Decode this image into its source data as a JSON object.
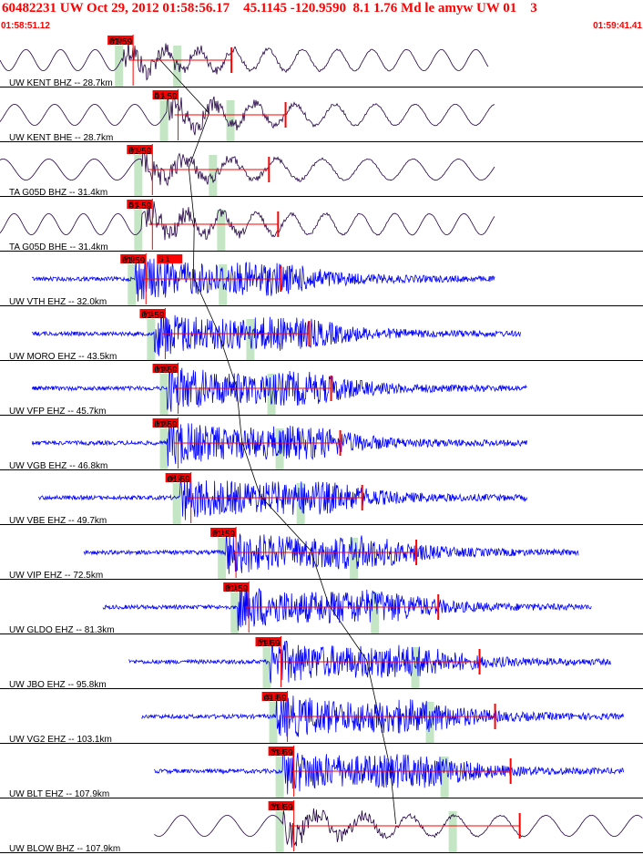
{
  "header": {
    "title": "60482231 UW Oct 29, 2012 01:58:56.17    45.1145 -120.9590  8.1 1.76 Md le amyw UW 01    3",
    "start_time": "01:58:51.12",
    "end_time": "01:59:41.41"
  },
  "colors": {
    "header_text": "#ff0000",
    "trace_dark": "#220044",
    "trace_blue": "#0000ff",
    "pick_box": "#ff0000",
    "pick_window": "#c5e6c5",
    "separator": "#000000"
  },
  "chart_data": {
    "type": "seismogram-record-section",
    "time_range": [
      "01:58:51.12",
      "01:59:41.41"
    ],
    "traces": [
      {
        "label": "UW KENT BHZ -- 28.7km",
        "distance_km": 28.7,
        "time_label": "01:59",
        "pick_label": "iP 0",
        "style": "dark",
        "start_frac": 0.0,
        "end_frac": 0.76,
        "onset_frac": 0.19,
        "amp": 0.35,
        "env": "bb"
      },
      {
        "label": "UW KENT BHE -- 28.7km",
        "distance_km": 28.7,
        "time_label": "01:59",
        "pick_label": "S 1",
        "style": "dark",
        "start_frac": 0.0,
        "end_frac": 0.77,
        "onset_frac": 0.26,
        "amp": 0.35,
        "env": "bb"
      },
      {
        "label": "TA G05D BHZ -- 31.4km",
        "distance_km": 31.4,
        "time_label": "01:59",
        "pick_label": "iP 0",
        "style": "dark",
        "start_frac": 0.0,
        "end_frac": 0.77,
        "onset_frac": 0.22,
        "amp": 0.35,
        "env": "bb"
      },
      {
        "label": "TA G05D BHE -- 31.4km",
        "distance_km": 31.4,
        "time_label": "01:59",
        "pick_label": "S 1",
        "style": "dark",
        "start_frac": 0.0,
        "end_frac": 0.77,
        "onset_frac": 0.22,
        "amp": 0.35,
        "env": "bb"
      },
      {
        "label": "UW VTH EHZ -- 32.0km",
        "distance_km": 32.0,
        "time_label": "01:59",
        "pick_label": "iP 0",
        "pick2_label": "S 1",
        "style": "blue",
        "start_frac": 0.05,
        "end_frac": 0.77,
        "onset_frac": 0.21,
        "amp": 0.45,
        "env": "hf"
      },
      {
        "label": "UW MORO EHZ -- 43.5km",
        "distance_km": 43.5,
        "time_label": "01:59",
        "pick_label": "iP 1",
        "style": "blue",
        "start_frac": 0.05,
        "end_frac": 0.81,
        "onset_frac": 0.24,
        "amp": 0.45,
        "env": "hf"
      },
      {
        "label": "UW VFP EHZ -- 45.7km",
        "distance_km": 45.7,
        "time_label": "01:59",
        "pick_label": "iPd0",
        "style": "blue",
        "start_frac": 0.05,
        "end_frac": 0.82,
        "onset_frac": 0.26,
        "amp": 0.45,
        "env": "hf"
      },
      {
        "label": "UW VGB EHZ -- 46.8km",
        "distance_km": 46.8,
        "time_label": "01:59",
        "pick_label": "iPd0",
        "style": "blue",
        "start_frac": 0.05,
        "end_frac": 0.82,
        "onset_frac": 0.26,
        "amp": 0.45,
        "env": "hf"
      },
      {
        "label": "UW VBE EHZ -- 49.7km",
        "distance_km": 49.7,
        "time_label": "01:59",
        "pick_label": "eP 2",
        "style": "blue",
        "start_frac": 0.06,
        "end_frac": 0.82,
        "onset_frac": 0.28,
        "amp": 0.45,
        "env": "hf"
      },
      {
        "label": "UW VIP EHZ -- 72.5km",
        "distance_km": 72.5,
        "time_label": "01:59",
        "pick_label": "iP 1",
        "style": "blue",
        "start_frac": 0.13,
        "end_frac": 0.9,
        "onset_frac": 0.35,
        "amp": 0.45,
        "env": "hf"
      },
      {
        "label": "UW GLDO EHZ -- 81.3km",
        "distance_km": 81.3,
        "time_label": "01:59",
        "pick_label": "iP 1",
        "style": "blue",
        "start_frac": 0.16,
        "end_frac": 0.92,
        "onset_frac": 0.37,
        "amp": 0.45,
        "env": "hf"
      },
      {
        "label": "UW JBO EHZ -- 95.8km",
        "distance_km": 95.8,
        "time_label": "01:59",
        "pick_label": "iPd1",
        "style": "blue",
        "start_frac": 0.2,
        "end_frac": 0.95,
        "onset_frac": 0.42,
        "amp": 0.45,
        "env": "hf"
      },
      {
        "label": "UW VG2 EHZ -- 103.1km",
        "distance_km": 103.1,
        "time_label": "01:59",
        "pick_label": "eS 1",
        "style": "blue",
        "start_frac": 0.22,
        "end_frac": 0.97,
        "onset_frac": 0.43,
        "amp": 0.45,
        "env": "hf"
      },
      {
        "label": "UW BLT EHZ -- 107.9km",
        "distance_km": 107.9,
        "time_label": "01:59",
        "pick_label": "iPd1",
        "style": "blue",
        "start_frac": 0.24,
        "end_frac": 0.97,
        "onset_frac": 0.44,
        "amp": 0.45,
        "env": "hf"
      },
      {
        "label": "UW BLOW BHZ -- 107.9km",
        "distance_km": 107.9,
        "time_label": "01:59",
        "pick_label": "iPd1",
        "style": "dark",
        "start_frac": 0.24,
        "end_frac": 1.0,
        "onset_frac": 0.44,
        "amp": 0.35,
        "env": "bb"
      }
    ]
  }
}
